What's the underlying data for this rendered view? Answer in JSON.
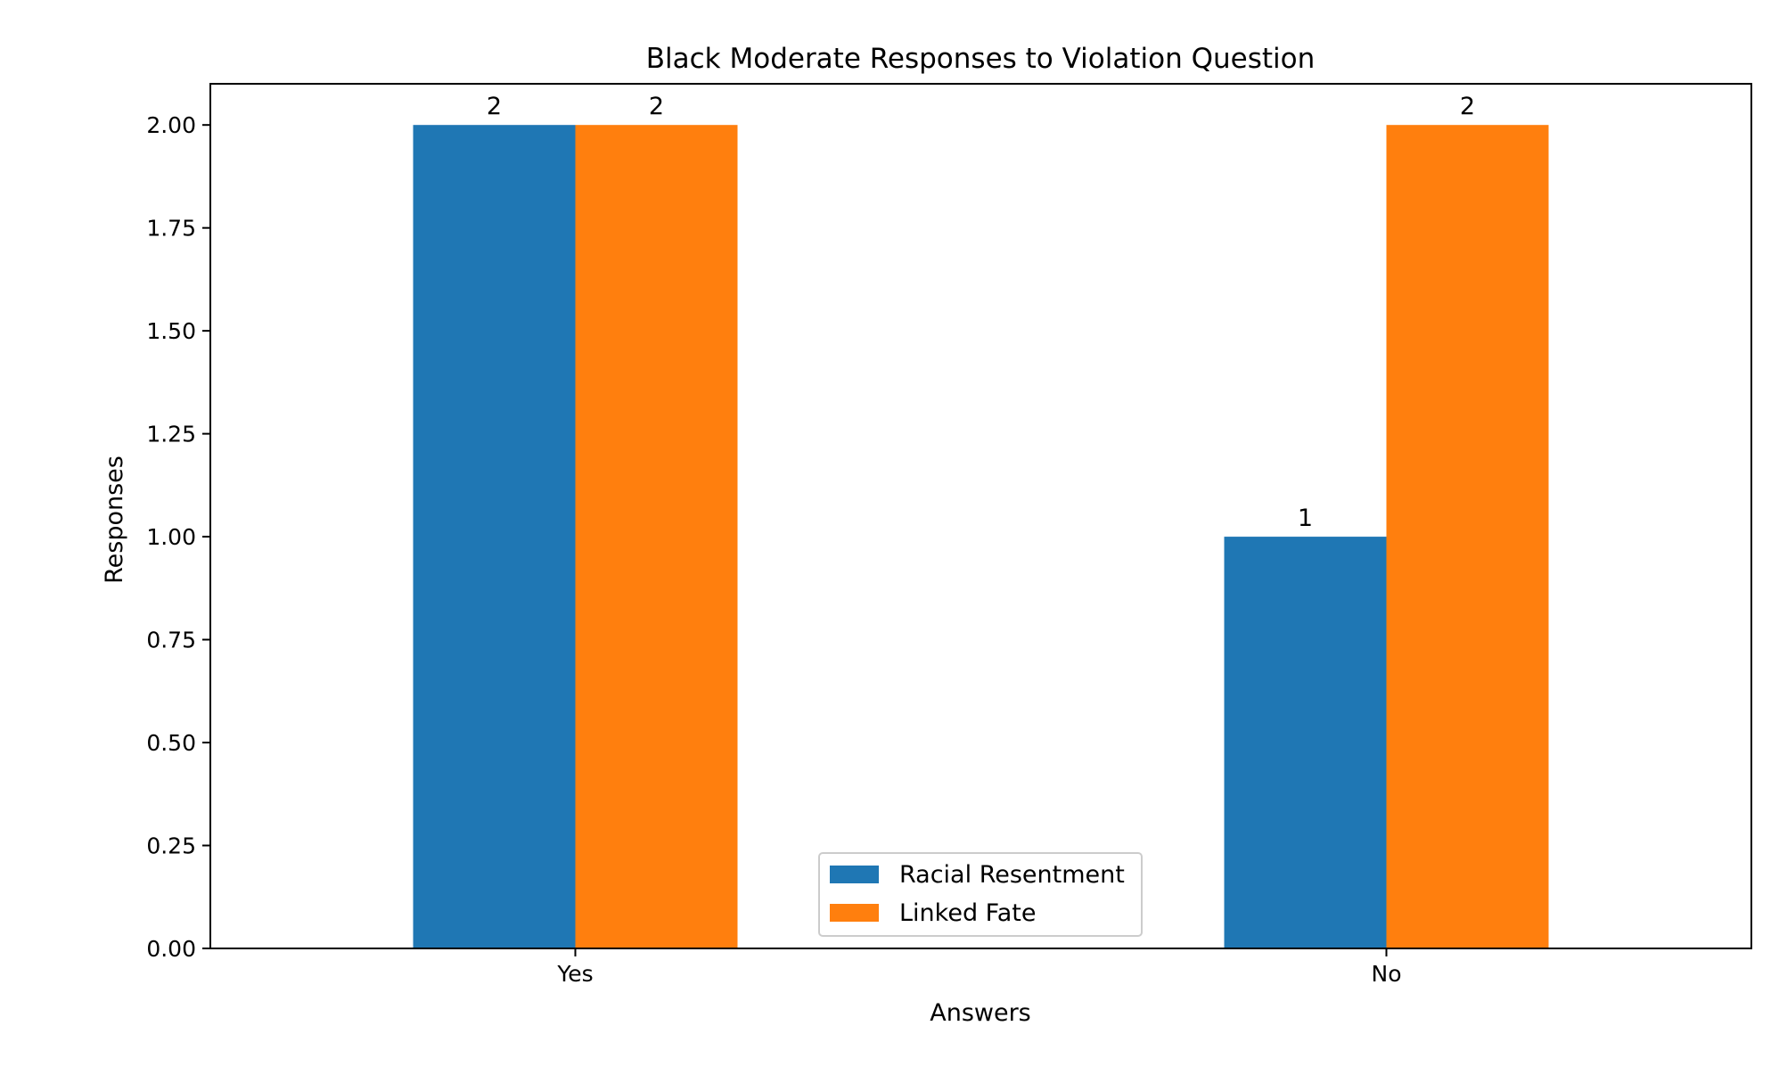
{
  "chart_data": {
    "type": "bar",
    "title": "Black Moderate Responses to Violation Question",
    "xlabel": "Answers",
    "ylabel": "Responses",
    "categories": [
      "Yes",
      "No"
    ],
    "series": [
      {
        "name": "Racial Resentment",
        "color": "#1f77b4",
        "values": [
          2,
          1
        ]
      },
      {
        "name": "Linked Fate",
        "color": "#ff7f0e",
        "values": [
          2,
          2
        ]
      }
    ],
    "ylim": [
      0,
      2.1
    ],
    "yticks": [
      "0.00",
      "0.25",
      "0.50",
      "0.75",
      "1.00",
      "1.25",
      "1.50",
      "1.75",
      "2.00"
    ],
    "data_labels": true,
    "grid": false,
    "legend_position": "lower center"
  }
}
